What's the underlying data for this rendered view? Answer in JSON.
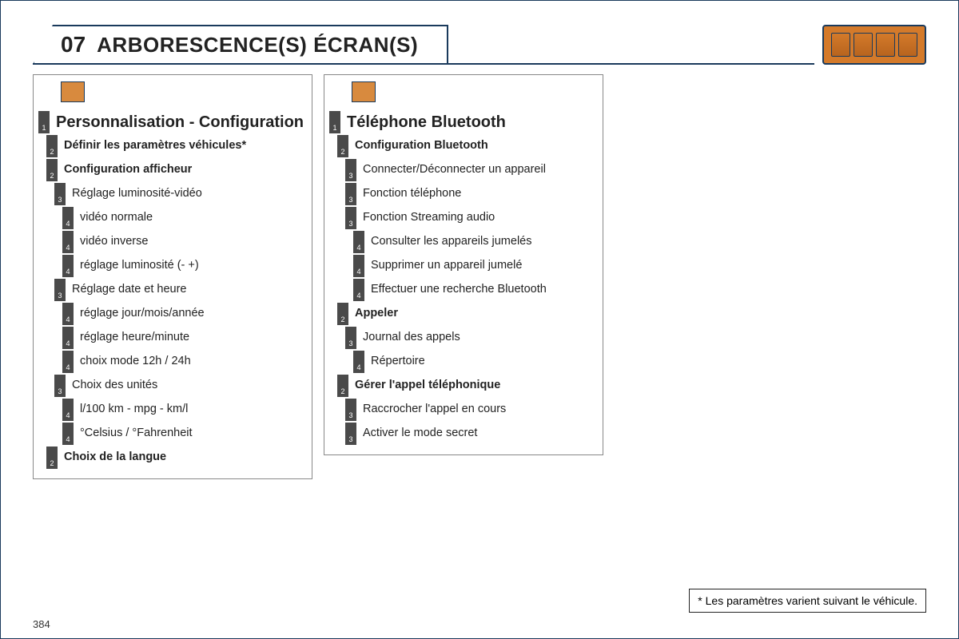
{
  "header": {
    "number": "07",
    "title": "ARBORESCENCE(S) ÉCRAN(S)"
  },
  "colors": {
    "border": "#1a3a5c",
    "icon_bg": "#d47a2a",
    "badge_bg": "#4a4a4a",
    "text": "#222222",
    "box_border": "#888888"
  },
  "page_number": "384",
  "footnote": "* Les paramètres varient suivant le véhicule.",
  "columns": [
    {
      "icon_name": "settings-icon",
      "items": [
        {
          "level": 1,
          "text": "Personnalisation - Configuration",
          "bold": true,
          "title": true
        },
        {
          "level": 2,
          "text": "Définir les paramètres véhicules*",
          "bold": true
        },
        {
          "level": 2,
          "text": "Configuration afficheur",
          "bold": true
        },
        {
          "level": 3,
          "text": "Réglage luminosité-vidéo"
        },
        {
          "level": 4,
          "text": "vidéo normale"
        },
        {
          "level": 4,
          "text": "vidéo inverse"
        },
        {
          "level": 4,
          "text": "réglage luminosité (- +)"
        },
        {
          "level": 3,
          "text": "Réglage date et heure"
        },
        {
          "level": 4,
          "text": "réglage jour/mois/année"
        },
        {
          "level": 4,
          "text": "réglage heure/minute"
        },
        {
          "level": 4,
          "text": "choix mode 12h / 24h"
        },
        {
          "level": 3,
          "text": "Choix des unités"
        },
        {
          "level": 4,
          "text": "l/100 km - mpg - km/l"
        },
        {
          "level": 4,
          "text": "°Celsius / °Fahrenheit"
        },
        {
          "level": 2,
          "text": "Choix de la langue",
          "bold": true
        }
      ]
    },
    {
      "icon_name": "phone-icon",
      "items": [
        {
          "level": 1,
          "text": "Téléphone Bluetooth",
          "bold": true,
          "title": true
        },
        {
          "level": 2,
          "text": "Configuration Bluetooth",
          "bold": true
        },
        {
          "level": 3,
          "text": "Connecter/Déconnecter un appareil"
        },
        {
          "level": 3,
          "text": "Fonction téléphone"
        },
        {
          "level": 3,
          "text": "Fonction Streaming audio"
        },
        {
          "level": 4,
          "text": "Consulter les appareils jumelés"
        },
        {
          "level": 4,
          "text": "Supprimer un appareil jumelé"
        },
        {
          "level": 4,
          "text": "Effectuer une recherche Bluetooth"
        },
        {
          "level": 2,
          "text": "Appeler",
          "bold": true
        },
        {
          "level": 3,
          "text": "Journal des appels"
        },
        {
          "level": 4,
          "text": "Répertoire"
        },
        {
          "level": 2,
          "text": "Gérer l'appel téléphonique",
          "bold": true
        },
        {
          "level": 3,
          "text": "Raccrocher l'appel en cours"
        },
        {
          "level": 3,
          "text": "Activer le mode secret"
        }
      ]
    }
  ]
}
